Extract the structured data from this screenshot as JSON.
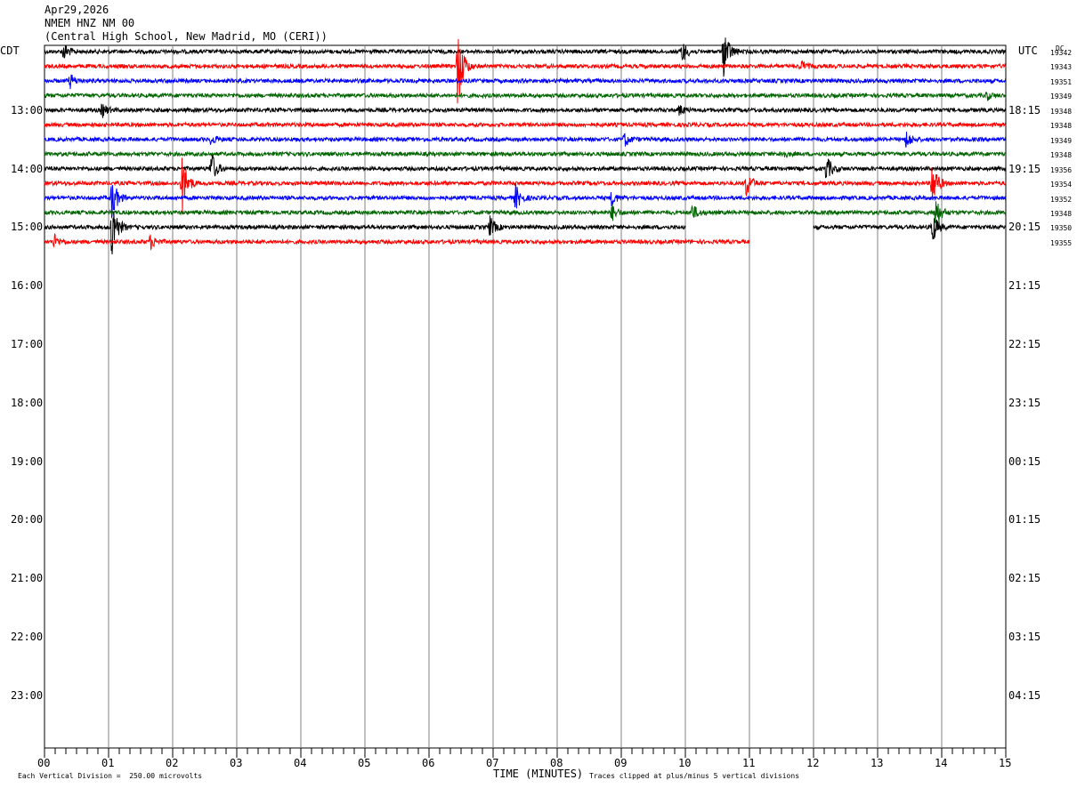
{
  "header": {
    "date": "Apr29,2026",
    "station": "NMEM HNZ NM 00",
    "location": "(Central High School, New Madrid, MO (CERI))"
  },
  "labels": {
    "left_tz": "CDT",
    "right_tz": "UTC",
    "dc": "DC",
    "xlabel": "TIME (MINUTES)",
    "scale_note": "Each Vertical Division =  250.00 microvolts",
    "clip_note": "Traces clipped at plus/minus 5 vertical divisions"
  },
  "chart_data": {
    "type": "line",
    "title": "NMEM HNZ NM 00",
    "xlabel": "TIME (MINUTES)",
    "xlim": [
      0,
      15
    ],
    "x_ticks": [
      "00",
      "01",
      "02",
      "03",
      "04",
      "05",
      "06",
      "07",
      "08",
      "09",
      "10",
      "11",
      "12",
      "13",
      "14",
      "15"
    ],
    "left_hour_labels": [
      "13:00",
      "14:00",
      "15:00",
      "16:00",
      "17:00",
      "18:00",
      "19:00",
      "20:00",
      "21:00",
      "22:00",
      "23:00"
    ],
    "right_hour_labels": [
      "18:15",
      "19:15",
      "20:15",
      "21:15",
      "22:15",
      "23:15",
      "00:15",
      "01:15",
      "02:15",
      "03:15",
      "04:15"
    ],
    "trace_colors": [
      "#000000",
      "#ff0000",
      "#0000ff",
      "#006400"
    ],
    "series": [
      {
        "dc": "19342",
        "end_min": 15
      },
      {
        "dc": "19343",
        "end_min": 15
      },
      {
        "dc": "19351",
        "end_min": 15
      },
      {
        "dc": "19349",
        "end_min": 15
      },
      {
        "dc": "19348",
        "end_min": 15
      },
      {
        "dc": "19348",
        "end_min": 15
      },
      {
        "dc": "19349",
        "end_min": 15
      },
      {
        "dc": "19348",
        "end_min": 15
      },
      {
        "dc": "19356",
        "end_min": 15
      },
      {
        "dc": "19354",
        "end_min": 15
      },
      {
        "dc": "19352",
        "end_min": 15
      },
      {
        "dc": "19348",
        "end_min": 15
      },
      {
        "dc": "19350",
        "end_min": 15,
        "gap": [
          10.0,
          12.0
        ]
      },
      {
        "dc": "19355",
        "end_min": 11.0
      }
    ],
    "events": [
      {
        "trace": 0,
        "min": 0.3,
        "amp": 10
      },
      {
        "trace": 0,
        "min": 9.95,
        "amp": 12
      },
      {
        "trace": 0,
        "min": 10.6,
        "amp": 30
      },
      {
        "trace": 1,
        "min": 6.45,
        "amp": 50
      },
      {
        "trace": 1,
        "min": 11.8,
        "amp": 6
      },
      {
        "trace": 2,
        "min": 0.4,
        "amp": 8
      },
      {
        "trace": 3,
        "min": 14.7,
        "amp": 5
      },
      {
        "trace": 4,
        "min": 0.9,
        "amp": 8
      },
      {
        "trace": 4,
        "min": 9.9,
        "amp": 6
      },
      {
        "trace": 6,
        "min": 2.6,
        "amp": 6
      },
      {
        "trace": 6,
        "min": 9.05,
        "amp": 8
      },
      {
        "trace": 6,
        "min": 13.45,
        "amp": 10
      },
      {
        "trace": 7,
        "min": 11.5,
        "amp": 5
      },
      {
        "trace": 8,
        "min": 2.6,
        "amp": 20
      },
      {
        "trace": 8,
        "min": 12.2,
        "amp": 15
      },
      {
        "trace": 9,
        "min": 2.15,
        "amp": 35
      },
      {
        "trace": 9,
        "min": 10.95,
        "amp": 15
      },
      {
        "trace": 9,
        "min": 13.85,
        "amp": 30
      },
      {
        "trace": 10,
        "min": 1.05,
        "amp": 25
      },
      {
        "trace": 10,
        "min": 7.35,
        "amp": 15
      },
      {
        "trace": 10,
        "min": 8.85,
        "amp": 8
      },
      {
        "trace": 11,
        "min": 8.85,
        "amp": 10
      },
      {
        "trace": 11,
        "min": 10.1,
        "amp": 10
      },
      {
        "trace": 11,
        "min": 13.9,
        "amp": 20
      },
      {
        "trace": 12,
        "min": 1.05,
        "amp": 40
      },
      {
        "trace": 12,
        "min": 6.95,
        "amp": 12
      },
      {
        "trace": 12,
        "min": 13.85,
        "amp": 20
      },
      {
        "trace": 13,
        "min": 0.15,
        "amp": 8
      },
      {
        "trace": 13,
        "min": 1.65,
        "amp": 8
      }
    ]
  }
}
